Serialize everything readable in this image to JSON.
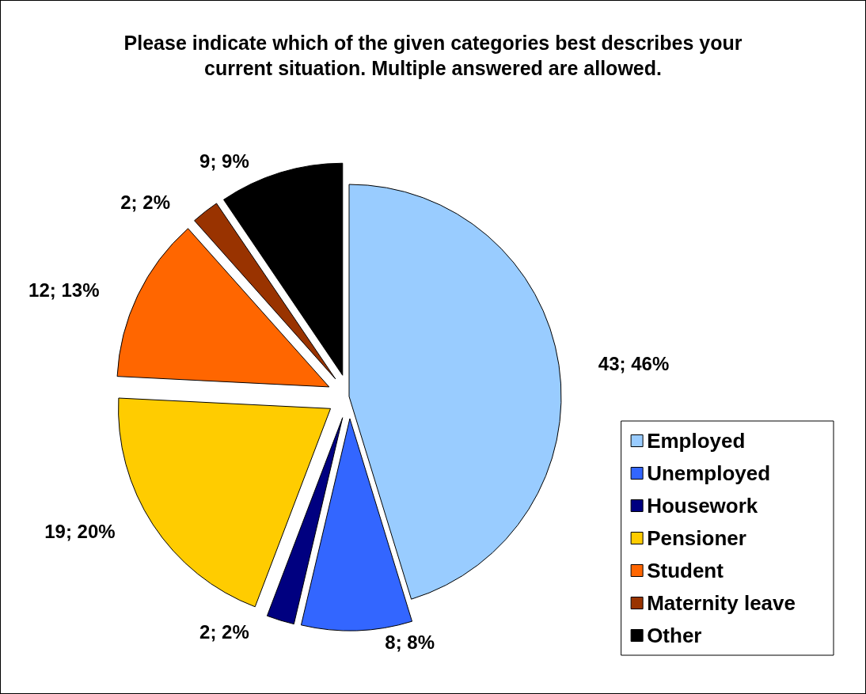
{
  "chart_data": {
    "type": "pie",
    "title": "Please indicate which of the given categories best describes your\ncurrent situation. Multiple answered are allowed.",
    "categories": [
      "Employed",
      "Unemployed",
      "Housework",
      "Pensioner",
      "Student",
      "Maternity leave",
      "Other"
    ],
    "values": [
      43,
      8,
      2,
      19,
      12,
      2,
      9
    ],
    "value_labels": [
      "43; 46%",
      "8; 8%",
      "2; 2%",
      "19; 20%",
      "12; 13%",
      "2; 2%",
      "9; 9%"
    ],
    "colors": [
      "#99ccff",
      "#3366ff",
      "#000080",
      "#ffcc00",
      "#ff6600",
      "#993300",
      "#000000"
    ],
    "legend": "bottom right"
  }
}
